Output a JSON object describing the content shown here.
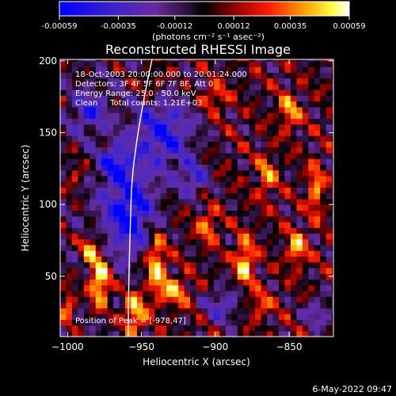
{
  "colorbar": {
    "ticks": [
      "-0.00059",
      "-0.00035",
      "-0.00012",
      "0.00012",
      "0.00035",
      "0.00059"
    ],
    "range": [
      -0.00059,
      0.00059
    ]
  },
  "units_line": "(photons cm⁻² s⁻¹ asec⁻²)",
  "footer": {
    "date_stamp": "6-May-2022 09:47"
  },
  "colors": {
    "background": "#000000",
    "axes": "#ffffff",
    "limb": "#ffffff"
  },
  "chart_data": {
    "type": "heatmap",
    "title": "Reconstructed RHESSI Image",
    "xlabel": "Heliocentric X (arcsec)",
    "ylabel": "Heliocentric Y (arcsec)",
    "xlim": [
      -1005,
      -820
    ],
    "ylim": [
      8,
      201
    ],
    "xticks": [
      -1000,
      -950,
      -900,
      -850
    ],
    "yticks": [
      50,
      100,
      150,
      200
    ],
    "xtick_labels": [
      "−1000",
      "−950",
      "−900",
      "−850"
    ],
    "ytick_labels": [
      "50",
      "100",
      "150",
      "200"
    ],
    "annotations": [
      "18-Oct-2003 20:00:00.000 to 20:01:24.000",
      "Detectors: 3F 4F 5F 6F 7F 8F, Att 0",
      "Energy Range: 25.0 - 50.0 keV",
      "Clean     Total counts: 1.21E+03"
    ],
    "peak_label": "Position of Peak = [-978,47]",
    "peak": [
      -978,
      47
    ],
    "grid": false,
    "colormap": "blue-purple-black-red-yellow-white",
    "map_value_range": [
      -0.00059,
      0.00059
    ]
  }
}
